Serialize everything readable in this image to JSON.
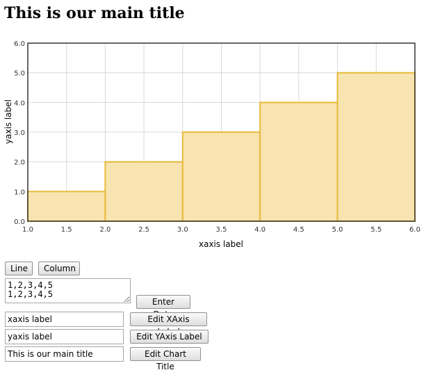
{
  "page": {
    "title": "This is our main title"
  },
  "chart_data": {
    "type": "bar",
    "title": "",
    "xlabel": "xaxis label",
    "ylabel": "yaxis label",
    "xlim": [
      1.0,
      6.0
    ],
    "ylim": [
      0.0,
      6.0
    ],
    "x_ticks": [
      "1.0",
      "1.5",
      "2.0",
      "2.5",
      "3.0",
      "3.5",
      "4.0",
      "4.5",
      "5.0",
      "5.5",
      "6.0"
    ],
    "y_ticks": [
      "0.0",
      "1.0",
      "2.0",
      "3.0",
      "4.0",
      "5.0",
      "6.0"
    ],
    "bars": [
      {
        "x_start": 1,
        "x_end": 2,
        "value": 1
      },
      {
        "x_start": 2,
        "x_end": 3,
        "value": 2
      },
      {
        "x_start": 3,
        "x_end": 4,
        "value": 3
      },
      {
        "x_start": 4,
        "x_end": 5,
        "value": 4
      },
      {
        "x_start": 5,
        "x_end": 6,
        "value": 5
      }
    ],
    "grid": true,
    "legend": false,
    "colors": {
      "bar_fill": "#f8e4b0",
      "bar_stroke": "#e8b93a",
      "grid": "#d8d8d8",
      "axis": "#333333"
    }
  },
  "controls": {
    "line_button": "Line",
    "column_button": "Column",
    "data_input_value": "1,2,3,4,5\n1,2,3,4,5",
    "enter_data_button": "Enter Data",
    "xaxis_input_value": "xaxis label",
    "edit_xaxis_button": "Edit XAxis Label",
    "yaxis_input_value": "yaxis label",
    "edit_yaxis_button": "Edit YAxis Label",
    "title_input_value": "This is our main title",
    "edit_title_button": "Edit Chart Title"
  }
}
